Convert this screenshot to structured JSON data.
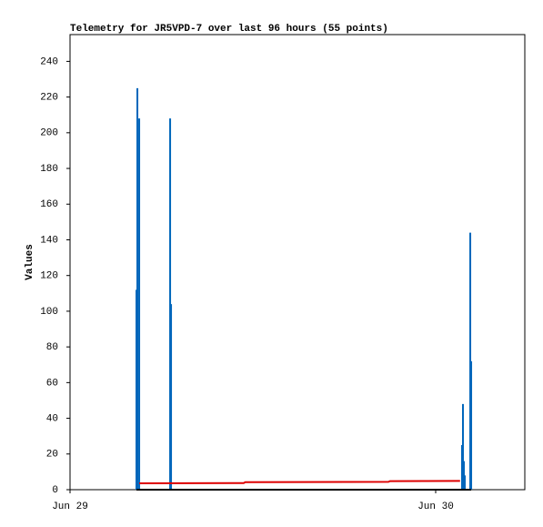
{
  "chart_data": {
    "type": "impulse-line",
    "title": "Telemetry for JR5VPD-7 over last 96 hours (55 points)",
    "y_label": "Values",
    "xlim": [
      0,
      29.85
    ],
    "xticks": [
      {
        "value": 0,
        "label": "Jun 29"
      },
      {
        "value": 24,
        "label": "Jun 30"
      }
    ],
    "ylim": [
      0,
      255
    ],
    "yticks": [
      0,
      20,
      40,
      60,
      80,
      100,
      120,
      140,
      160,
      180,
      200,
      220,
      240
    ],
    "series": [
      {
        "style": "impulse",
        "color": "#0066bb",
        "x": [
          4.36,
          4.42,
          4.54,
          6.57,
          6.63,
          25.73,
          25.79,
          25.85,
          25.91,
          26.27,
          26.33
        ],
        "values": [
          112,
          225,
          208,
          208,
          104,
          25,
          48,
          16,
          8,
          144,
          72
        ]
      },
      {
        "style": "line",
        "color": "#dd0000",
        "x": [
          4.54,
          11.4,
          11.5,
          20.9,
          21.0,
          25.6
        ],
        "values": [
          3.6,
          3.7,
          4.2,
          4.4,
          4.8,
          4.9
        ]
      },
      {
        "style": "line",
        "color": "#000000",
        "x": [
          4.36,
          26.33
        ],
        "values": [
          0,
          0
        ]
      }
    ]
  }
}
